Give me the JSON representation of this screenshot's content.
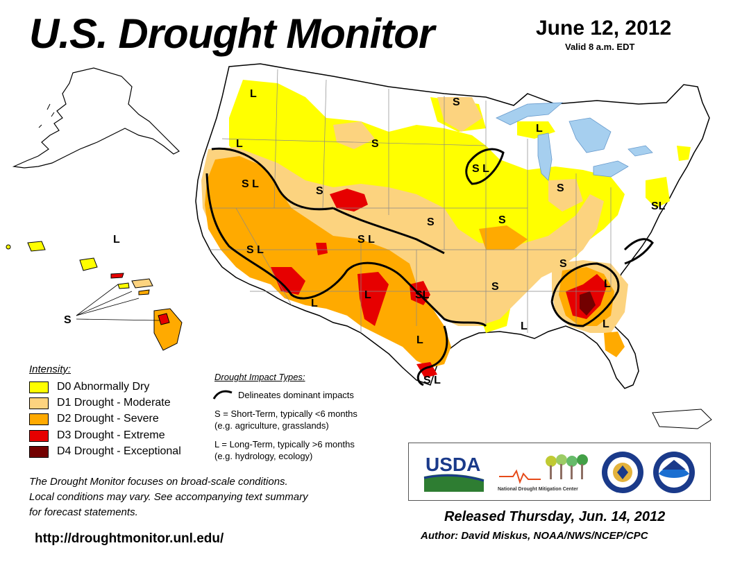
{
  "header": {
    "title": "U.S. Drought Monitor",
    "date": "June 12, 2012",
    "valid": "Valid 8 a.m. EDT"
  },
  "colors": {
    "d0": "#FFFF00",
    "d1": "#FCD37F",
    "d2": "#FFAA00",
    "d3": "#E60000",
    "d4": "#730000",
    "water": "#A6CFEF",
    "state_border": "#888888"
  },
  "legend": {
    "title": "Intensity:",
    "items": [
      {
        "code": "D0",
        "label": "D0 Abnormally Dry"
      },
      {
        "code": "D1",
        "label": "D1 Drought - Moderate"
      },
      {
        "code": "D2",
        "label": "D2 Drought - Severe"
      },
      {
        "code": "D3",
        "label": "D3 Drought - Extreme"
      },
      {
        "code": "D4",
        "label": "D4 Drought - Exceptional"
      }
    ]
  },
  "impacts": {
    "title": "Drought Impact Types:",
    "delineates": "Delineates dominant impacts",
    "short_line1": "S = Short-Term, typically <6 months",
    "short_line2": "(e.g. agriculture, grasslands)",
    "long_line1": "L = Long-Term, typically >6 months",
    "long_line2": "(e.g. hydrology, ecology)"
  },
  "map_labels": {
    "L": "L",
    "S": "S",
    "SL": "SL",
    "S L": "S L"
  },
  "note": {
    "line1": "The Drought Monitor focuses on broad-scale conditions.",
    "line2": "Local conditions may vary. See accompanying text summary",
    "line3": "for forecast statements."
  },
  "url": "http://droughtmonitor.unl.edu/",
  "logos": {
    "usda": "USDA",
    "ndmc": "National Drought Mitigation Center"
  },
  "footer": {
    "released": "Released Thursday, Jun. 14, 2012",
    "author": "Author: David Miskus, NOAA/NWS/NCEP/CPC"
  }
}
